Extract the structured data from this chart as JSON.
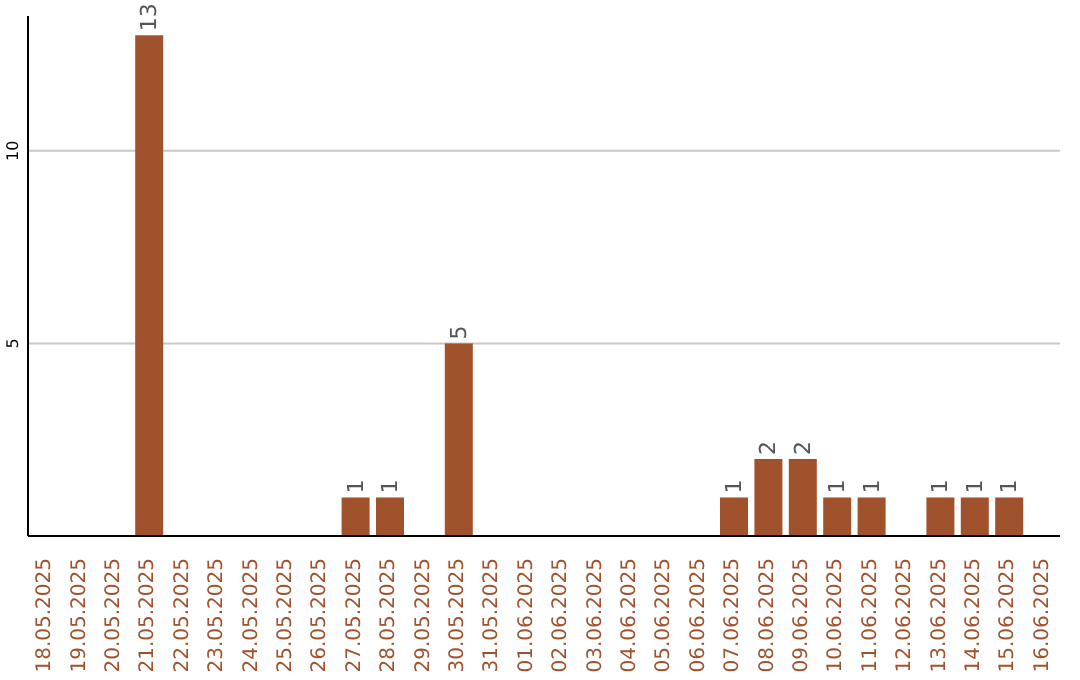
{
  "chart_data": {
    "type": "bar",
    "categories": [
      "18.05.2025",
      "19.05.2025",
      "20.05.2025",
      "21.05.2025",
      "22.05.2025",
      "23.05.2025",
      "24.05.2025",
      "25.05.2025",
      "26.05.2025",
      "27.05.2025",
      "28.05.2025",
      "29.05.2025",
      "30.05.2025",
      "31.05.2025",
      "01.06.2025",
      "02.06.2025",
      "03.06.2025",
      "04.06.2025",
      "05.06.2025",
      "06.06.2025",
      "07.06.2025",
      "08.06.2025",
      "09.06.2025",
      "10.06.2025",
      "11.06.2025",
      "12.06.2025",
      "13.06.2025",
      "14.06.2025",
      "15.06.2025",
      "16.06.2025"
    ],
    "values": [
      0,
      0,
      0,
      13,
      0,
      0,
      0,
      0,
      0,
      1,
      1,
      0,
      5,
      0,
      0,
      0,
      0,
      0,
      0,
      0,
      1,
      2,
      2,
      1,
      1,
      0,
      1,
      1,
      1,
      0
    ],
    "value_labels": [
      null,
      null,
      null,
      "13",
      null,
      null,
      null,
      null,
      null,
      "1",
      "1",
      null,
      "5",
      null,
      null,
      null,
      null,
      null,
      null,
      null,
      "1",
      "2",
      "2",
      "1",
      "1",
      null,
      "1",
      "1",
      "1",
      null
    ],
    "color": "#a0522d",
    "ylim": [
      0,
      13.5
    ],
    "yticks": [
      5,
      10
    ],
    "grid": "y"
  }
}
